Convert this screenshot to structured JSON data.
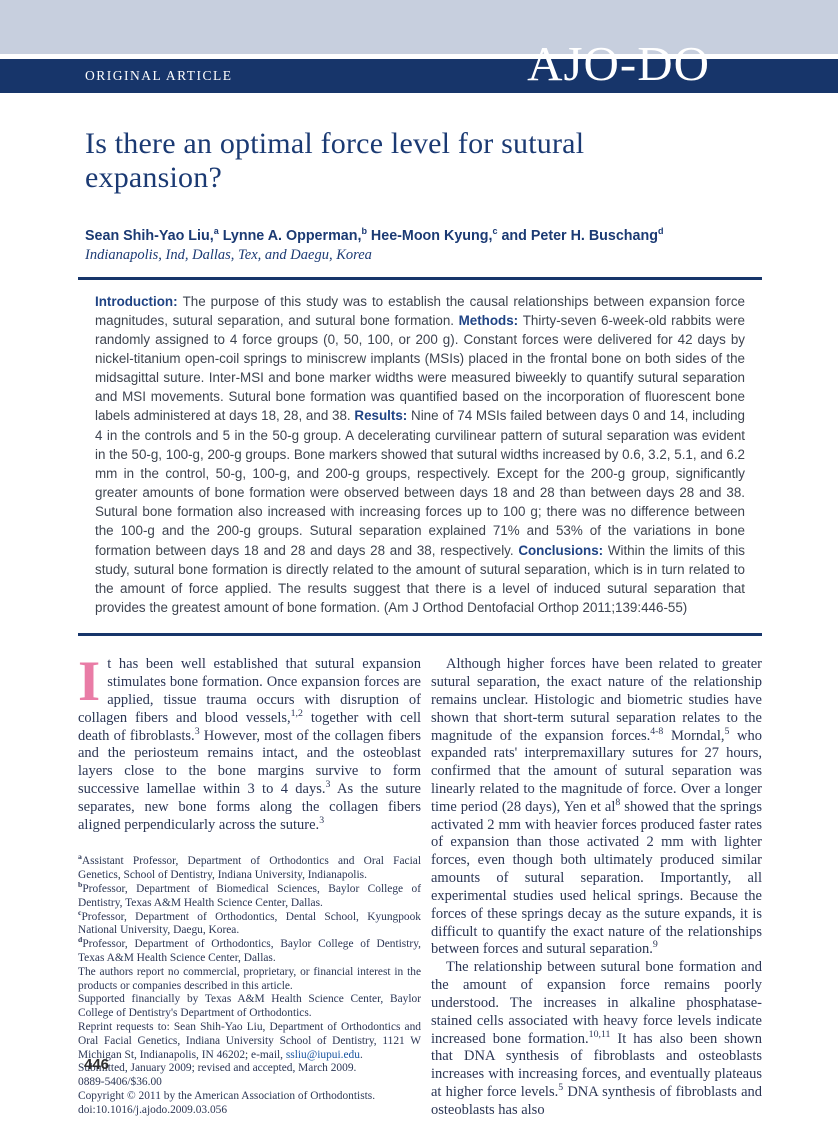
{
  "header": {
    "kicker": "ORIGINAL ARTICLE",
    "logo": "AJO-DO"
  },
  "title": "Is there an optimal force level for sutural expansion?",
  "authors": [
    {
      "t": "Sean Shih-Yao Liu,"
    },
    {
      "t": "a",
      "sup": true
    },
    {
      "t": " Lynne A. Opperman,"
    },
    {
      "t": "b",
      "sup": true
    },
    {
      "t": " Hee-Moon Kyung,"
    },
    {
      "t": "c",
      "sup": true
    },
    {
      "t": " and Peter H. Buschang"
    },
    {
      "t": "d",
      "sup": true
    }
  ],
  "affiliation": "Indianapolis, Ind, Dallas, Tex, and Daegu, Korea",
  "abstract": [
    {
      "t": "Introduction: ",
      "cls": "label"
    },
    {
      "t": "The purpose of this study was to establish the causal relationships between expansion force magnitudes, sutural separation, and sutural bone formation. "
    },
    {
      "t": "Methods: ",
      "cls": "label"
    },
    {
      "t": "Thirty-seven 6-week-old rabbits were randomly assigned to 4 force groups (0, 50, 100, or 200 g). Constant forces were delivered for 42 days by nickel-titanium open-coil springs to miniscrew implants (MSIs) placed in the frontal bone on both sides of the midsagittal suture. Inter-MSI and bone marker widths were measured biweekly to quantify sutural separation and MSI movements. Sutural bone formation was quantified based on the incorporation of fluorescent bone labels administered at days 18, 28, and 38. "
    },
    {
      "t": "Results: ",
      "cls": "label"
    },
    {
      "t": "Nine of 74 MSIs failed between days 0 and 14, including 4 in the controls and 5 in the 50-g group. A decelerating curvilinear pattern of sutural separation was evident in the 50-g, 100-g, 200-g groups. Bone markers showed that sutural widths increased by 0.6, 3.2, 5.1, and 6.2 mm in the control, 50-g, 100-g, and 200-g groups, respectively. Except for the 200-g group, significantly greater amounts of bone formation were observed between days 18 and 28 than between days 28 and 38. Sutural bone formation also increased with increasing forces up to 100 g; there was no difference between the 100-g and the 200-g groups. Sutural separation explained 71% and 53% of the variations in bone formation between days 18 and 28 and days 28 and 38, respectively. "
    },
    {
      "t": "Conclusions: ",
      "cls": "label"
    },
    {
      "t": "Within the limits of this study, sutural bone formation is directly related to the amount of sutural separation, which is in turn related to the amount of force applied. The results suggest that there is a level of induced sutural separation that provides the greatest amount of bone formation. (Am J Orthod Dentofacial Orthop 2011;139:446-55)"
    }
  ],
  "body": {
    "dropcap": "I",
    "left_paragraph": [
      {
        "t": "t has been well established that sutural expansion stimulates bone formation. Once expansion forces are applied, tissue trauma occurs with disruption of collagen fibers and blood vessels,"
      },
      {
        "t": "1,2",
        "sup": true
      },
      {
        "t": " together with cell death of fibroblasts."
      },
      {
        "t": "3",
        "sup": true
      },
      {
        "t": " However, most of the collagen fibers and the periosteum remains intact, and the osteoblast layers close to the bone margins survive to form successive lamellae within 3 to 4 days."
      },
      {
        "t": "3",
        "sup": true
      },
      {
        "t": " As the suture separates, new bone forms along the collagen fibers aligned perpendicularly across the suture."
      },
      {
        "t": "3",
        "sup": true
      }
    ],
    "right_paragraphs": [
      [
        {
          "t": "Although higher forces have been related to greater sutural separation, the exact nature of the relationship remains unclear. Histologic and biometric studies have shown that short-term sutural separation relates to the magnitude of the expansion forces."
        },
        {
          "t": "4-8",
          "sup": true
        },
        {
          "t": " Morndal,"
        },
        {
          "t": "5",
          "sup": true
        },
        {
          "t": " who expanded rats' interpremaxillary sutures for 27 hours, confirmed that the amount of sutural separation was linearly related to the magnitude of force. Over a longer time period (28 days), Yen et al"
        },
        {
          "t": "8",
          "sup": true
        },
        {
          "t": " showed that the springs activated 2 mm with heavier forces produced faster rates of expansion than those activated 2 mm with lighter forces, even though both ultimately produced similar amounts of sutural separation. Importantly, all experimental studies used helical springs. Because the forces of these springs decay as the suture expands, it is difficult to quantify the exact nature of the relationships between forces and sutural separation."
        },
        {
          "t": "9",
          "sup": true
        }
      ],
      [
        {
          "t": "The relationship between sutural bone formation and the amount of expansion force remains poorly understood. The increases in alkaline phosphatase-stained cells associated with heavy force levels indicate increased bone formation."
        },
        {
          "t": "10,11",
          "sup": true
        },
        {
          "t": " It has also been shown that DNA synthesis of fibroblasts and osteoblasts increases with increasing forces, and eventually plateaus at higher force levels."
        },
        {
          "t": "5",
          "sup": true
        },
        {
          "t": " DNA synthesis of fibroblasts and osteoblasts has also"
        }
      ]
    ]
  },
  "footnotes": [
    [
      {
        "t": "a",
        "sup": true
      },
      {
        "t": "Assistant Professor, Department of Orthodontics and Oral Facial Genetics, School of Dentistry, Indiana University, Indianapolis."
      }
    ],
    [
      {
        "t": "b",
        "sup": true
      },
      {
        "t": "Professor, Department of Biomedical Sciences, Baylor College of Dentistry, Texas A&M Health Science Center, Dallas."
      }
    ],
    [
      {
        "t": "c",
        "sup": true
      },
      {
        "t": "Professor, Department of Orthodontics, Dental School, Kyungpook National University, Daegu, Korea."
      }
    ],
    [
      {
        "t": "d",
        "sup": true
      },
      {
        "t": "Professor, Department of Orthodontics, Baylor College of Dentistry, Texas A&M Health Science Center, Dallas."
      }
    ],
    [
      {
        "t": "The authors report no commercial, proprietary, or financial interest in the products or companies described in this article."
      }
    ],
    [
      {
        "t": "Supported financially by Texas A&M Health Science Center, Baylor College of Dentistry's Department of Orthodontics."
      }
    ],
    [
      {
        "t": "Reprint requests to: Sean Shih-Yao Liu, Department of Orthodontics and Oral Facial Genetics, Indiana University School of Dentistry, 1121 W Michigan St, Indianapolis, IN 46202; e-mail, "
      },
      {
        "t": "ssliu@iupui.edu",
        "cls": "link"
      },
      {
        "t": "."
      }
    ],
    [
      {
        "t": "Submitted, January 2009; revised and accepted, March 2009."
      }
    ],
    [
      {
        "t": "0889-5406/$36.00"
      }
    ],
    [
      {
        "t": "Copyright © 2011 by the American Association of Orthodontists."
      }
    ],
    [
      {
        "t": "doi:10.1016/j.ajodo.2009.03.056"
      }
    ]
  ],
  "page_number": "446",
  "colors": {
    "band_light": "#c7cfde",
    "band_navy": "#17356a",
    "heading_navy": "#1b3a73",
    "abstract_label_blue": "#1f4384",
    "dropcap_pink": "#e97ca6",
    "link_blue": "#1a56a0"
  }
}
